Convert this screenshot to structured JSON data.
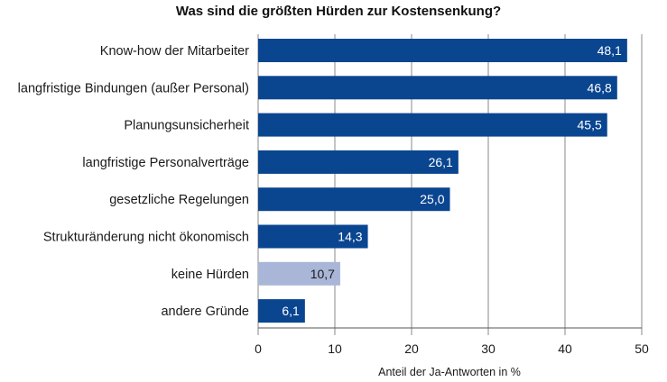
{
  "chart_data": {
    "type": "bar",
    "orientation": "horizontal",
    "title": "Was sind die größten Hürden zur Kostensenkung?",
    "xlabel": "Anteil der Ja-Antworten in %",
    "ylabel": "",
    "xlim": [
      0,
      50
    ],
    "xticks": [
      "0",
      "10",
      "20",
      "30",
      "40",
      "50"
    ],
    "grid": true,
    "categories": [
      "Know-how der Mitarbeiter",
      "langfristige Bindungen (außer Personal)",
      "Planungsunsicherheit",
      "langfristige Personalverträge",
      "gesetzliche Regelungen",
      "Strukturänderung nicht ökonomisch",
      "keine Hürden",
      "andere Gründe"
    ],
    "values": [
      48.1,
      46.8,
      45.5,
      26.1,
      25.0,
      14.3,
      10.7,
      6.1
    ],
    "value_labels": [
      "48,1",
      "46,8",
      "45,5",
      "26,1",
      "25,0",
      "14,3",
      "10,7",
      "6,1"
    ],
    "bar_colors": [
      "#0a4590",
      "#0a4590",
      "#0a4590",
      "#0a4590",
      "#0a4590",
      "#0a4590",
      "#a9b6d8",
      "#0a4590"
    ],
    "label_colors": [
      "#ffffff",
      "#ffffff",
      "#ffffff",
      "#ffffff",
      "#ffffff",
      "#ffffff",
      "#1a1a1a",
      "#ffffff"
    ]
  },
  "colors": {
    "grid": "#8a8a8a",
    "axis": "#555555"
  }
}
